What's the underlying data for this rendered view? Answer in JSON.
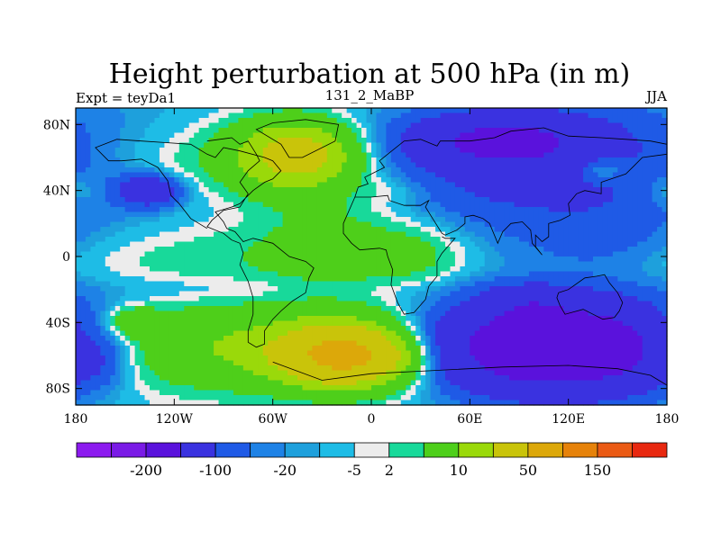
{
  "chart_data": {
    "type": "heatmap",
    "title": "Height perturbation at 500 hPa (in m)",
    "left_string": "Expt = teyDa1",
    "center_string": "131_2_MaBP",
    "right_string": "JJA",
    "xlim": [
      -180,
      180
    ],
    "ylim": [
      -90,
      90
    ],
    "x_ticks": [
      {
        "value": -180,
        "label": "180"
      },
      {
        "value": -120,
        "label": "120W"
      },
      {
        "value": -60,
        "label": "60W"
      },
      {
        "value": 0,
        "label": "0"
      },
      {
        "value": 60,
        "label": "60E"
      },
      {
        "value": 120,
        "label": "120E"
      },
      {
        "value": 180,
        "label": "180"
      }
    ],
    "y_ticks": [
      {
        "value": 80,
        "label": "80N"
      },
      {
        "value": 40,
        "label": "40N"
      },
      {
        "value": 0,
        "label": "0"
      },
      {
        "value": -40,
        "label": "40S"
      },
      {
        "value": -80,
        "label": "80S"
      }
    ],
    "colorbar": {
      "colors": [
        "#8c1aef",
        "#7a1ae6",
        "#5a12dc",
        "#3a32e0",
        "#1f5ae6",
        "#1e82e6",
        "#1ea0dc",
        "#1ebce6",
        "#ececec",
        "#18d99a",
        "#4ecf1a",
        "#9ad90a",
        "#c9c40a",
        "#dca80a",
        "#e6820a",
        "#ea5a14",
        "#e82810"
      ],
      "labels": [
        "-200",
        "-100",
        "-20",
        "-5",
        "2",
        "10",
        "50",
        "150"
      ],
      "label_after_box": [
        1,
        3,
        5,
        7,
        8,
        10,
        12,
        14
      ]
    },
    "field_blobs": [
      {
        "lon": -100,
        "lat": 0,
        "rlon": 120,
        "rlat": 22,
        "amp": 8
      },
      {
        "lon": -100,
        "lat": 58,
        "rlon": 110,
        "rlat": 24,
        "amp": 14
      },
      {
        "lon": -45,
        "lat": 62,
        "rlon": 35,
        "rlat": 20,
        "amp": 60
      },
      {
        "lon": -20,
        "lat": 10,
        "rlon": 45,
        "rlat": 40,
        "amp": 14
      },
      {
        "lon": -135,
        "lat": 40,
        "rlon": 18,
        "rlat": 9,
        "amp": -40
      },
      {
        "lon": 110,
        "lat": 55,
        "rlon": 120,
        "rlat": 38,
        "amp": -30
      },
      {
        "lon": 80,
        "lat": 70,
        "rlon": 50,
        "rlat": 14,
        "amp": -60
      },
      {
        "lon": 30,
        "lat": 2,
        "rlon": 30,
        "rlat": 22,
        "amp": 10
      },
      {
        "lon": 140,
        "lat": 8,
        "rlon": 50,
        "rlat": 20,
        "amp": -10
      },
      {
        "lon": 15,
        "lat": 40,
        "rlon": 22,
        "rlat": 8,
        "amp": 6
      },
      {
        "lon": 140,
        "lat": 53,
        "rlon": 15,
        "rlat": 8,
        "amp": 20
      },
      {
        "lon": 180,
        "lat": 40,
        "rlon": 15,
        "rlat": 10,
        "amp": 10
      },
      {
        "lon": -60,
        "lat": -20,
        "rlon": 150,
        "rlat": 9,
        "amp": -6
      },
      {
        "lon": -90,
        "lat": -55,
        "rlon": 90,
        "rlat": 25,
        "amp": 30
      },
      {
        "lon": -15,
        "lat": -60,
        "rlon": 40,
        "rlat": 18,
        "amp": 110
      },
      {
        "lon": -145,
        "lat": -40,
        "rlon": 15,
        "rlat": 8,
        "amp": 25
      },
      {
        "lon": -165,
        "lat": -65,
        "rlon": 15,
        "rlat": 14,
        "amp": -8
      },
      {
        "lon": 115,
        "lat": -55,
        "rlon": 70,
        "rlat": 26,
        "amp": -120
      },
      {
        "lon": 95,
        "lat": -28,
        "rlon": 25,
        "rlat": 10,
        "amp": -20
      },
      {
        "lon": 180,
        "lat": -50,
        "rlon": 15,
        "rlat": 14,
        "amp": 10
      }
    ],
    "coastlines": [
      [
        [
          -100,
          70
        ],
        [
          -85,
          72
        ],
        [
          -80,
          68
        ],
        [
          -75,
          70
        ],
        [
          -70,
          62
        ],
        [
          -68,
          58
        ],
        [
          -75,
          52
        ],
        [
          -80,
          45
        ],
        [
          -75,
          38
        ],
        [
          -80,
          30
        ],
        [
          -90,
          28
        ],
        [
          -97,
          22
        ],
        [
          -100,
          18
        ],
        [
          -90,
          14
        ],
        [
          -85,
          10
        ],
        [
          -80,
          8
        ],
        [
          -78,
          2
        ],
        [
          -80,
          -5
        ],
        [
          -75,
          -15
        ],
        [
          -72,
          -25
        ],
        [
          -72,
          -35
        ],
        [
          -75,
          -45
        ],
        [
          -75,
          -52
        ],
        [
          -70,
          -55
        ],
        [
          -65,
          -53
        ],
        [
          -65,
          -45
        ],
        [
          -60,
          -38
        ],
        [
          -55,
          -33
        ],
        [
          -48,
          -27
        ],
        [
          -40,
          -22
        ],
        [
          -38,
          -13
        ],
        [
          -35,
          -7
        ],
        [
          -40,
          -3
        ],
        [
          -50,
          0
        ],
        [
          -60,
          8
        ],
        [
          -72,
          11
        ],
        [
          -78,
          9
        ],
        [
          -83,
          15
        ],
        [
          -88,
          17
        ],
        [
          -90,
          21
        ],
        [
          -95,
          27
        ],
        [
          -85,
          30
        ],
        [
          -80,
          32
        ],
        [
          -72,
          40
        ],
        [
          -65,
          45
        ],
        [
          -60,
          47
        ],
        [
          -55,
          52
        ],
        [
          -60,
          58
        ],
        [
          -65,
          60
        ],
        [
          -80,
          64
        ],
        [
          -90,
          66
        ],
        [
          -95,
          60
        ],
        [
          -100,
          62
        ],
        [
          -110,
          68
        ],
        [
          -125,
          69
        ],
        [
          -140,
          70
        ],
        [
          -155,
          71
        ],
        [
          -168,
          66
        ],
        [
          -160,
          58
        ],
        [
          -152,
          58
        ],
        [
          -140,
          59
        ],
        [
          -130,
          54
        ],
        [
          -124,
          46
        ],
        [
          -122,
          37
        ],
        [
          -117,
          32
        ],
        [
          -110,
          23
        ],
        [
          -105,
          20
        ],
        [
          -100,
          17
        ]
      ],
      [
        [
          -10,
          36
        ],
        [
          -8,
          42
        ],
        [
          -2,
          44
        ],
        [
          -4,
          48
        ],
        [
          2,
          51
        ],
        [
          8,
          54
        ],
        [
          5,
          58
        ],
        [
          10,
          62
        ],
        [
          20,
          70
        ],
        [
          30,
          71
        ],
        [
          40,
          67
        ],
        [
          42,
          70
        ],
        [
          60,
          70
        ],
        [
          75,
          72
        ],
        [
          85,
          76
        ],
        [
          105,
          78
        ],
        [
          120,
          73
        ],
        [
          140,
          72
        ],
        [
          155,
          71
        ],
        [
          170,
          70
        ],
        [
          180,
          68
        ]
      ],
      [
        [
          180,
          62
        ],
        [
          165,
          60
        ],
        [
          160,
          55
        ],
        [
          155,
          50
        ],
        [
          140,
          45
        ],
        [
          140,
          38
        ],
        [
          130,
          40
        ],
        [
          125,
          38
        ],
        [
          120,
          32
        ],
        [
          121,
          25
        ],
        [
          115,
          22
        ],
        [
          108,
          20
        ],
        [
          108,
          12
        ],
        [
          104,
          9
        ],
        [
          100,
          13
        ],
        [
          100,
          6
        ],
        [
          104,
          1
        ],
        [
          98,
          8
        ],
        [
          97,
          16
        ],
        [
          92,
          21
        ],
        [
          85,
          20
        ],
        [
          80,
          15
        ],
        [
          77,
          8
        ],
        [
          72,
          20
        ],
        [
          68,
          23
        ],
        [
          62,
          25
        ],
        [
          57,
          24
        ],
        [
          57,
          20
        ],
        [
          52,
          16
        ],
        [
          45,
          13
        ],
        [
          43,
          14
        ],
        [
          38,
          22
        ],
        [
          33,
          30
        ],
        [
          35,
          34
        ],
        [
          30,
          31
        ],
        [
          20,
          31
        ],
        [
          11,
          34
        ],
        [
          10,
          37
        ],
        [
          0,
          36
        ],
        [
          -10,
          36
        ],
        [
          -17,
          20
        ],
        [
          -17,
          14
        ],
        [
          -12,
          8
        ],
        [
          -7,
          4
        ],
        [
          5,
          5
        ],
        [
          9,
          4
        ],
        [
          10,
          0
        ],
        [
          13,
          -8
        ],
        [
          12,
          -17
        ],
        [
          16,
          -28
        ],
        [
          20,
          -35
        ],
        [
          26,
          -34
        ],
        [
          33,
          -26
        ],
        [
          35,
          -18
        ],
        [
          40,
          -12
        ],
        [
          40,
          -3
        ],
        [
          43,
          2
        ],
        [
          51,
          11
        ],
        [
          45,
          11
        ],
        [
          43,
          12
        ]
      ],
      [
        [
          114,
          -22
        ],
        [
          120,
          -20
        ],
        [
          130,
          -13
        ],
        [
          137,
          -12
        ],
        [
          142,
          -11
        ],
        [
          145,
          -16
        ],
        [
          150,
          -22
        ],
        [
          153,
          -28
        ],
        [
          151,
          -33
        ],
        [
          148,
          -37
        ],
        [
          141,
          -38
        ],
        [
          135,
          -35
        ],
        [
          129,
          -32
        ],
        [
          118,
          -35
        ],
        [
          115,
          -30
        ],
        [
          113,
          -25
        ],
        [
          114,
          -22
        ]
      ],
      [
        [
          -60,
          -64
        ],
        [
          -30,
          -75
        ],
        [
          0,
          -71
        ],
        [
          40,
          -69
        ],
        [
          80,
          -67
        ],
        [
          120,
          -66
        ],
        [
          150,
          -68
        ],
        [
          170,
          -72
        ],
        [
          180,
          -78
        ]
      ],
      [
        [
          -50,
          60
        ],
        [
          -42,
          60
        ],
        [
          -22,
          70
        ],
        [
          -20,
          80
        ],
        [
          -40,
          83
        ],
        [
          -60,
          81
        ],
        [
          -70,
          77
        ],
        [
          -55,
          68
        ],
        [
          -50,
          60
        ]
      ]
    ]
  }
}
